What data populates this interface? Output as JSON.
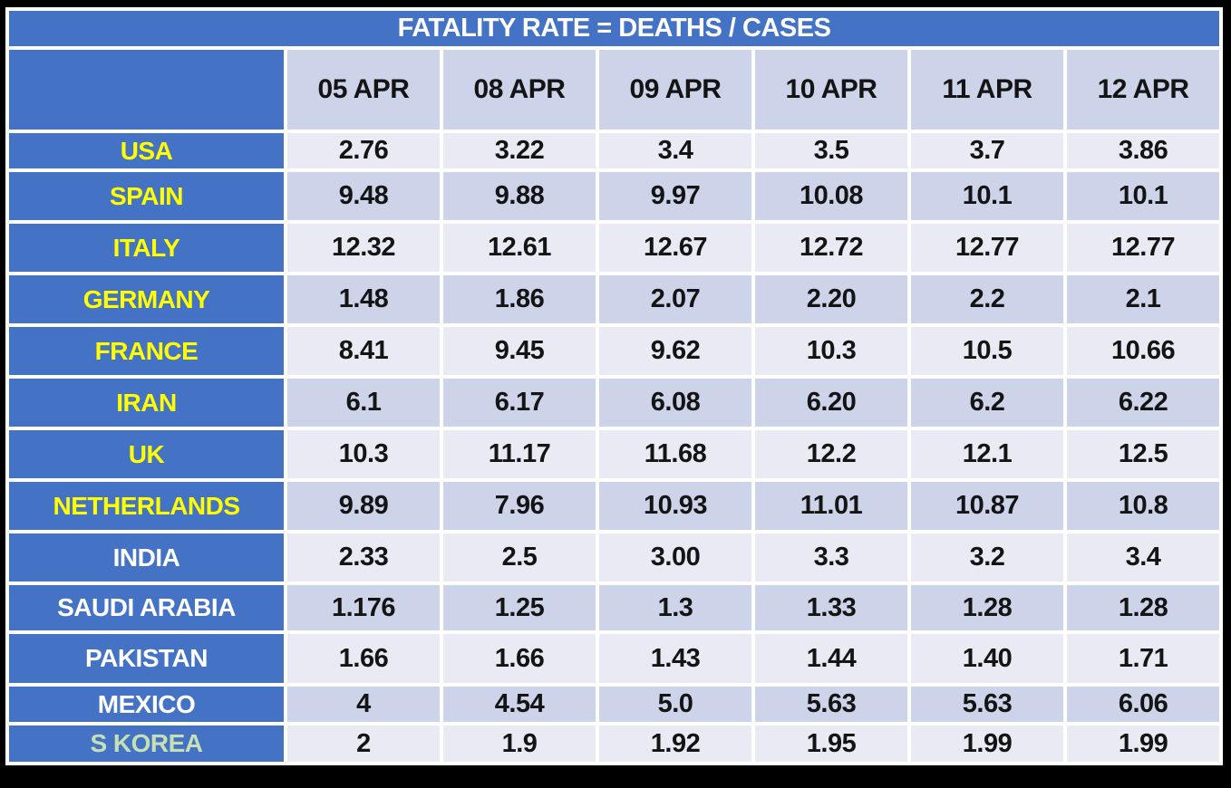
{
  "title": "FATALITY RATE = DEATHS / CASES",
  "chart_data": {
    "type": "table",
    "title": "FATALITY RATE = DEATHS / CASES",
    "columns": [
      "05 APR",
      "08 APR",
      "09 APR",
      "10 APR",
      "11 APR",
      "12 APR"
    ],
    "rows": [
      {
        "label": "USA",
        "label_color": "#FFFF00",
        "values": [
          "2.76",
          "3.22",
          "3.4",
          "3.5",
          "3.7",
          "3.86"
        ]
      },
      {
        "label": "SPAIN",
        "label_color": "#FFFF00",
        "values": [
          "9.48",
          "9.88",
          "9.97",
          "10.08",
          "10.1",
          "10.1"
        ]
      },
      {
        "label": "ITALY",
        "label_color": "#FFFF00",
        "values": [
          "12.32",
          "12.61",
          "12.67",
          "12.72",
          "12.77",
          "12.77"
        ]
      },
      {
        "label": "GERMANY",
        "label_color": "#FFFF00",
        "values": [
          "1.48",
          "1.86",
          "2.07",
          "2.20",
          "2.2",
          "2.1"
        ]
      },
      {
        "label": "FRANCE",
        "label_color": "#FFFF00",
        "values": [
          "8.41",
          "9.45",
          "9.62",
          "10.3",
          "10.5",
          "10.66"
        ]
      },
      {
        "label": "IRAN",
        "label_color": "#FFFF00",
        "values": [
          "6.1",
          "6.17",
          "6.08",
          "6.20",
          "6.2",
          "6.22"
        ]
      },
      {
        "label": "UK",
        "label_color": "#FFFF00",
        "values": [
          "10.3",
          "11.17",
          "11.68",
          "12.2",
          "12.1",
          "12.5"
        ]
      },
      {
        "label": "NETHERLANDS",
        "label_color": "#FFFF00",
        "values": [
          "9.89",
          "7.96",
          "10.93",
          "11.01",
          "10.87",
          "10.8"
        ]
      },
      {
        "label": "INDIA",
        "label_color": "#FFFFFF",
        "values": [
          "2.33",
          "2.5",
          "3.00",
          "3.3",
          "3.2",
          "3.4"
        ]
      },
      {
        "label": "SAUDI ARABIA",
        "label_color": "#FFFFFF",
        "values": [
          "1.176",
          "1.25",
          "1.3",
          "1.33",
          "1.28",
          "1.28"
        ]
      },
      {
        "label": "PAKISTAN",
        "label_color": "#FFFFFF",
        "values": [
          "1.66",
          "1.66",
          "1.43",
          "1.44",
          "1.40",
          "1.71"
        ]
      },
      {
        "label": "MEXICO",
        "label_color": "#FFFFFF",
        "values": [
          "4",
          "4.54",
          "5.0",
          "5.63",
          "5.63",
          "6.06"
        ]
      },
      {
        "label": "S KOREA",
        "label_color": "#C6E0B4",
        "values": [
          "2",
          "1.9",
          "1.92",
          "1.95",
          "1.99",
          "1.99"
        ]
      }
    ]
  },
  "colors": {
    "accent_blue": "#4472C4",
    "band_light": "#E9EAF4",
    "band_dark": "#CDD3E8",
    "title_text": "#FFFFFF",
    "value_text": "#141414",
    "page_background": "#000000"
  }
}
